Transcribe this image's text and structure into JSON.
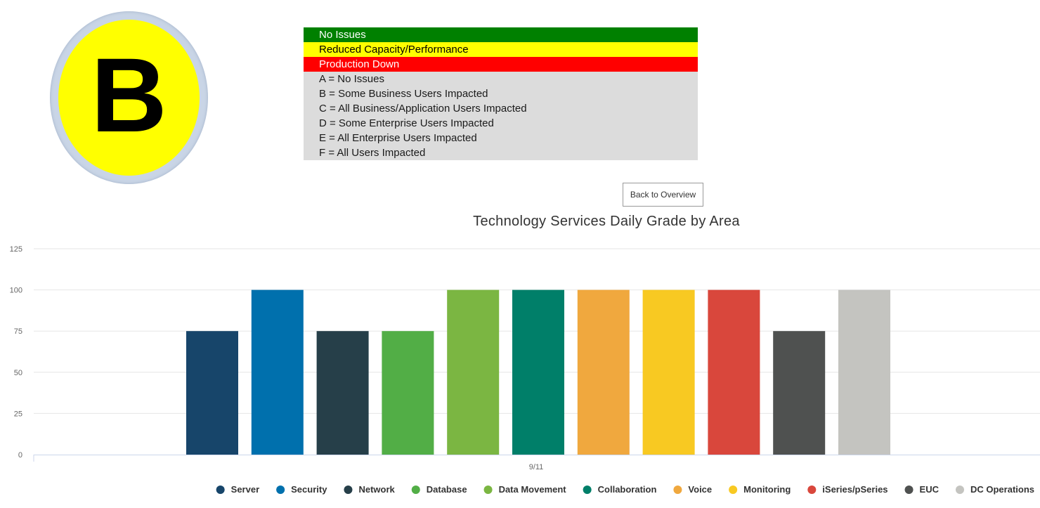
{
  "grade": {
    "letter": "B",
    "ring_color": "#c9d5e6",
    "fill_color": "#ffff00"
  },
  "legend_table": {
    "status_rows": [
      {
        "label": "No Issues",
        "color": "#008000",
        "text_color": "#ffffff"
      },
      {
        "label": "Reduced Capacity/Performance",
        "color": "#ffff00",
        "text_color": "#000000"
      },
      {
        "label": "Production Down",
        "color": "#ff0000",
        "text_color": "#ffffff"
      }
    ],
    "grade_rows": [
      "A = No Issues",
      "B = Some Business Users Impacted",
      "C = All Business/Application Users Impacted",
      "D = Some Enterprise Users Impacted",
      "E = All Enterprise Users Impacted",
      "F = All Users Impacted"
    ]
  },
  "back_button": {
    "label": "Back to Overview"
  },
  "chart_data": {
    "type": "bar",
    "title": "Technology Services Daily Grade by Area",
    "xlabel": "",
    "ylabel": "",
    "categories": [
      "9/11"
    ],
    "ylim": [
      0,
      125
    ],
    "yticks": [
      0,
      25,
      50,
      75,
      100,
      125
    ],
    "grid": true,
    "legend_position": "bottom-right",
    "series": [
      {
        "name": "Server",
        "values": [
          75
        ],
        "color": "#17456a"
      },
      {
        "name": "Security",
        "values": [
          100
        ],
        "color": "#0070ad"
      },
      {
        "name": "Network",
        "values": [
          75
        ],
        "color": "#263f49"
      },
      {
        "name": "Database",
        "values": [
          75
        ],
        "color": "#52ae46"
      },
      {
        "name": "Data Movement",
        "values": [
          100
        ],
        "color": "#7bb642"
      },
      {
        "name": "Collaboration",
        "values": [
          100
        ],
        "color": "#007f69"
      },
      {
        "name": "Voice",
        "values": [
          100
        ],
        "color": "#f0a83e"
      },
      {
        "name": "Monitoring",
        "values": [
          100
        ],
        "color": "#f8c922"
      },
      {
        "name": "iSeries/pSeries",
        "values": [
          100
        ],
        "color": "#d9473c"
      },
      {
        "name": "EUC",
        "values": [
          75
        ],
        "color": "#4f5150"
      },
      {
        "name": "DC Operations",
        "values": [
          100
        ],
        "color": "#c4c4c0"
      }
    ]
  }
}
